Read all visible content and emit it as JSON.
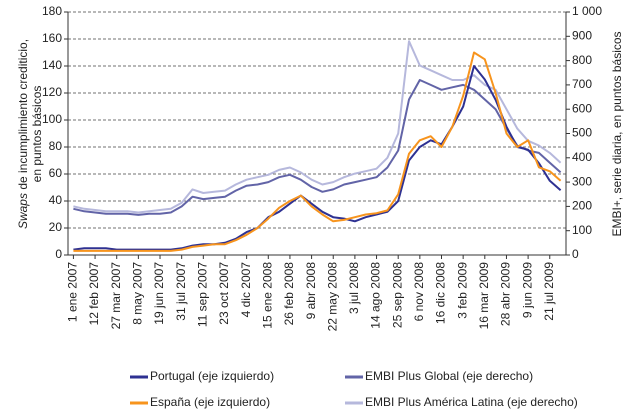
{
  "chart_data": {
    "type": "line",
    "ylabel": [
      "Swaps",
      "de incumplimiento crediticio,",
      "en puntos básicos"
    ],
    "y2label": "EMBI+, serie diaria, en puntos básicos",
    "categories": [
      "1 ene 2007",
      null,
      "12 feb 2007",
      null,
      "27 mar 2007",
      null,
      "8 may 2007",
      null,
      "19 jun 2007",
      null,
      "31 jul 2007",
      null,
      "11 sep 2007",
      null,
      "23 oct 2007",
      null,
      "4 dic 2007",
      null,
      "15 ene 2008",
      null,
      "26 feb 2008",
      null,
      "9 abr 2008",
      null,
      "22 may 2008",
      null,
      "3 jul 2008",
      null,
      "14 ago 2008",
      null,
      "25 sep 2008",
      null,
      "6 nov 2008",
      null,
      "16 dic 2008",
      null,
      "3 feb 2009",
      null,
      "16 mar 2009",
      null,
      "28 abr 2009",
      null,
      "9 jun 2009",
      null,
      "21 jul 2009",
      null
    ],
    "series": [
      {
        "name": "Portugal (eje izquierdo)",
        "color": "#2e3192",
        "values": [
          4,
          5,
          5,
          5,
          4,
          4,
          4,
          4,
          4,
          4,
          5,
          7,
          8,
          8,
          9,
          12,
          17,
          20,
          28,
          32,
          38,
          44,
          38,
          32,
          28,
          27,
          25,
          28,
          30,
          32,
          40,
          70,
          80,
          85,
          82,
          95,
          110,
          140,
          130,
          115,
          95,
          80,
          78,
          68,
          55,
          48
        ]
      },
      {
        "name": "España (eje izquierdo)",
        "color": "#f7941d",
        "values": [
          3,
          3,
          3,
          3,
          3,
          3,
          3,
          3,
          3,
          3,
          4,
          6,
          7,
          8,
          8,
          11,
          15,
          20,
          27,
          35,
          40,
          44,
          36,
          30,
          25,
          26,
          28,
          30,
          31,
          33,
          45,
          75,
          85,
          88,
          80,
          95,
          118,
          150,
          145,
          120,
          90,
          80,
          85,
          65,
          62,
          55
        ]
      },
      {
        "name": "EMBI Plus Global (eje derecho)",
        "color": "#6264a7",
        "axis": "y2",
        "values": [
          190,
          180,
          175,
          170,
          170,
          170,
          165,
          170,
          170,
          175,
          200,
          240,
          230,
          235,
          240,
          265,
          285,
          290,
          300,
          320,
          330,
          310,
          280,
          260,
          270,
          290,
          300,
          310,
          320,
          360,
          430,
          640,
          720,
          700,
          680,
          690,
          700,
          680,
          640,
          600,
          520,
          450,
          430,
          420,
          380,
          340
        ]
      },
      {
        "name": "EMBI Plus América Latina (eje derecho)",
        "color": "#b6b8dc",
        "axis": "y2",
        "values": [
          200,
          190,
          185,
          180,
          180,
          180,
          175,
          180,
          185,
          190,
          215,
          270,
          255,
          260,
          265,
          290,
          310,
          320,
          330,
          350,
          360,
          340,
          310,
          290,
          300,
          320,
          335,
          345,
          355,
          400,
          500,
          880,
          780,
          760,
          740,
          720,
          720,
          740,
          700,
          680,
          600,
          520,
          470,
          450,
          420,
          380
        ]
      }
    ],
    "ylim": [
      0,
      180
    ],
    "yticks": [
      0,
      20,
      40,
      60,
      80,
      100,
      120,
      140,
      160,
      180
    ],
    "y2lim": [
      0,
      1000
    ],
    "y2ticks": [
      0,
      100,
      200,
      300,
      400,
      500,
      600,
      700,
      800,
      900,
      {
        "value": 1000,
        "label": "1 000"
      }
    ],
    "grid": true,
    "legend": "bottom"
  }
}
